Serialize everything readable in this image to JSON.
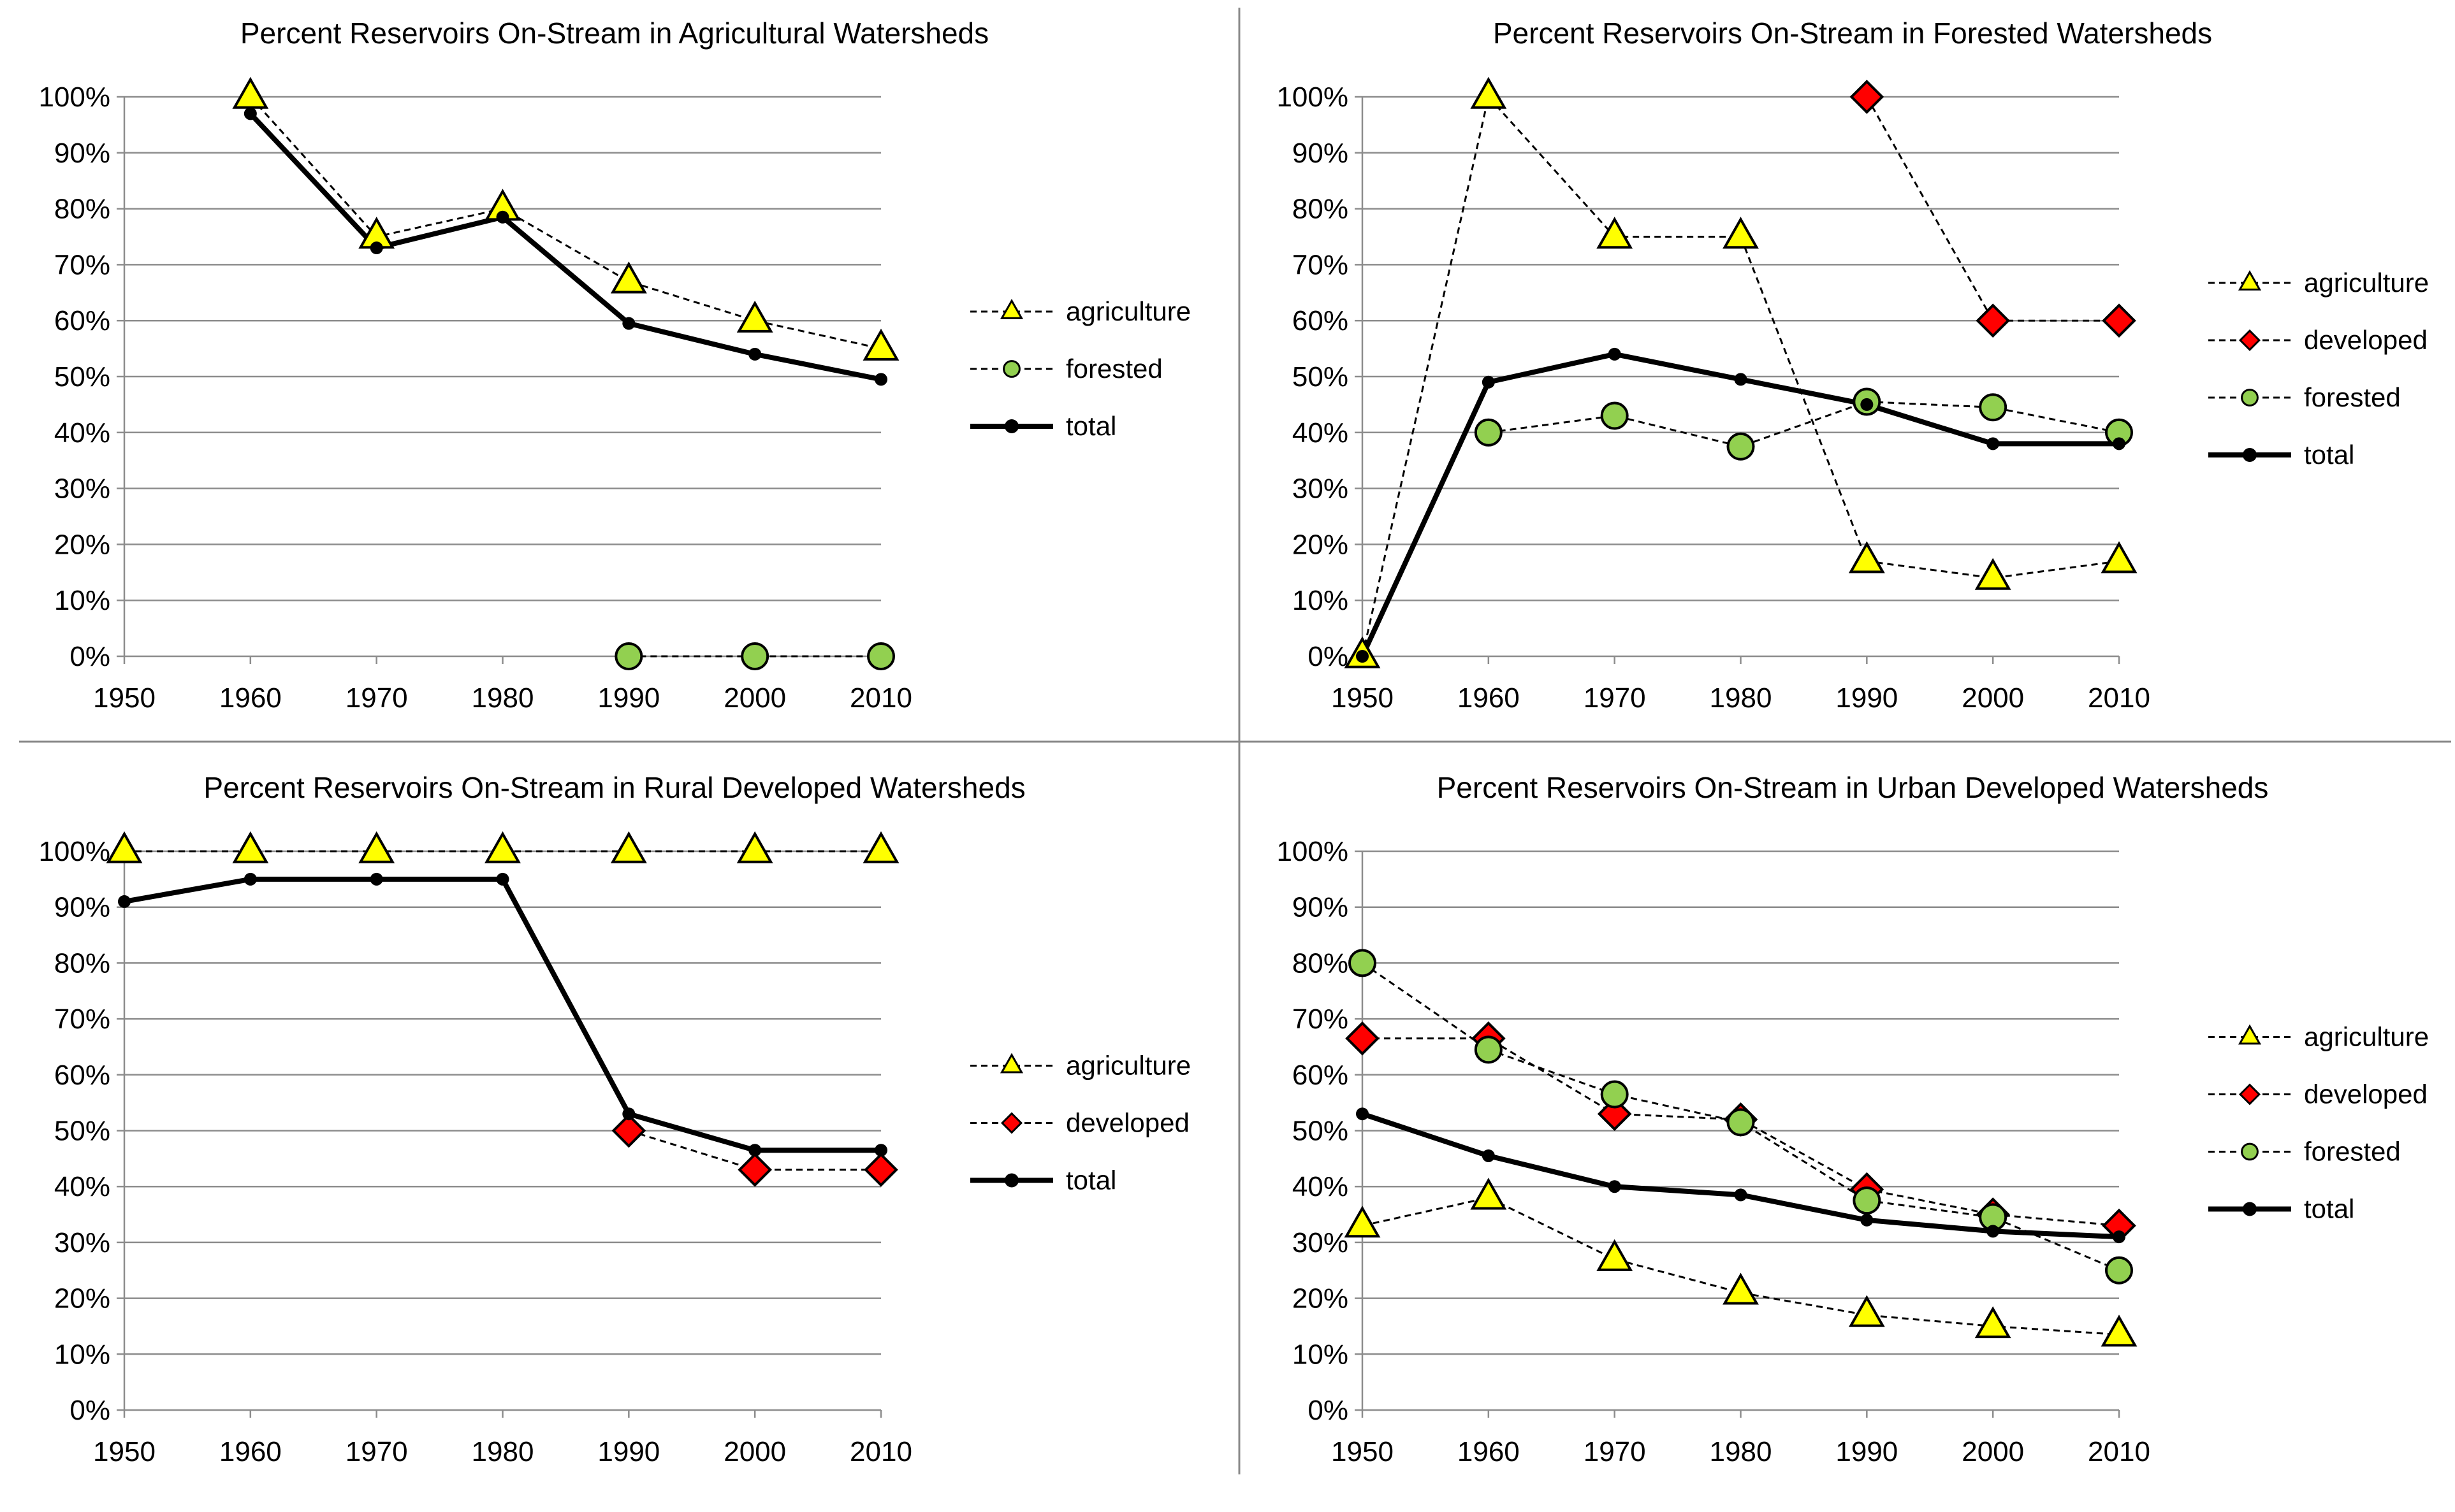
{
  "chart_data": [
    {
      "type": "line",
      "title": "Percent Reservoirs On-Stream in Agricultural Watersheds",
      "x": [
        1950,
        1960,
        1970,
        1980,
        1990,
        2000,
        2010
      ],
      "ylim": [
        0,
        100
      ],
      "y_ticks": [
        "0%",
        "10%",
        "20%",
        "30%",
        "40%",
        "50%",
        "60%",
        "70%",
        "80%",
        "90%",
        "100%"
      ],
      "grid": true,
      "legend": "right",
      "series": [
        {
          "name": "agriculture",
          "marker": "triangle",
          "color": "#ffff00",
          "dash": true,
          "values": [
            null,
            100,
            75,
            80,
            67,
            60,
            55
          ]
        },
        {
          "name": "forested",
          "marker": "circle",
          "color": "#92d050",
          "dash": true,
          "values": [
            null,
            null,
            null,
            null,
            0,
            0,
            0
          ]
        },
        {
          "name": "total",
          "marker": "dot",
          "color": "#000000",
          "dash": false,
          "values": [
            null,
            97,
            73,
            78.5,
            59.5,
            54,
            49.5
          ]
        }
      ]
    },
    {
      "type": "line",
      "title": "Percent Reservoirs On-Stream in Forested Watersheds",
      "x": [
        1950,
        1960,
        1970,
        1980,
        1990,
        2000,
        2010
      ],
      "ylim": [
        0,
        100
      ],
      "y_ticks": [
        "0%",
        "10%",
        "20%",
        "30%",
        "40%",
        "50%",
        "60%",
        "70%",
        "80%",
        "90%",
        "100%"
      ],
      "grid": true,
      "legend": "right",
      "series": [
        {
          "name": "agriculture",
          "marker": "triangle",
          "color": "#ffff00",
          "dash": true,
          "values": [
            0,
            100,
            75,
            75,
            17,
            14,
            17
          ]
        },
        {
          "name": "developed",
          "marker": "diamond",
          "color": "#ff0000",
          "dash": true,
          "values": [
            null,
            null,
            null,
            null,
            100,
            60,
            60
          ]
        },
        {
          "name": "forested",
          "marker": "circle",
          "color": "#92d050",
          "dash": true,
          "values": [
            null,
            40,
            43,
            37.5,
            45.5,
            44.5,
            40
          ]
        },
        {
          "name": "total",
          "marker": "dot",
          "color": "#000000",
          "dash": false,
          "values": [
            0,
            49,
            54,
            49.5,
            45,
            38,
            38
          ]
        }
      ]
    },
    {
      "type": "line",
      "title": "Percent Reservoirs On-Stream in Rural Developed Watersheds",
      "x": [
        1950,
        1960,
        1970,
        1980,
        1990,
        2000,
        2010
      ],
      "ylim": [
        0,
        100
      ],
      "y_ticks": [
        "0%",
        "10%",
        "20%",
        "30%",
        "40%",
        "50%",
        "60%",
        "70%",
        "80%",
        "90%",
        "100%"
      ],
      "grid": true,
      "legend": "right",
      "series": [
        {
          "name": "agriculture",
          "marker": "triangle",
          "color": "#ffff00",
          "dash": true,
          "values": [
            100,
            100,
            100,
            100,
            100,
            100,
            100
          ]
        },
        {
          "name": "developed",
          "marker": "diamond",
          "color": "#ff0000",
          "dash": true,
          "values": [
            null,
            null,
            null,
            null,
            50,
            43,
            43
          ]
        },
        {
          "name": "total",
          "marker": "dot",
          "color": "#000000",
          "dash": false,
          "values": [
            91,
            95,
            95,
            95,
            53,
            46.5,
            46.5
          ]
        }
      ]
    },
    {
      "type": "line",
      "title": "Percent Reservoirs On-Stream in Urban Developed Watersheds",
      "x": [
        1950,
        1960,
        1970,
        1980,
        1990,
        2000,
        2010
      ],
      "ylim": [
        0,
        100
      ],
      "y_ticks": [
        "0%",
        "10%",
        "20%",
        "30%",
        "40%",
        "50%",
        "60%",
        "70%",
        "80%",
        "90%",
        "100%"
      ],
      "grid": true,
      "legend": "right",
      "series": [
        {
          "name": "agriculture",
          "marker": "triangle",
          "color": "#ffff00",
          "dash": true,
          "values": [
            33,
            38,
            27,
            21,
            17,
            15,
            13.5
          ]
        },
        {
          "name": "developed",
          "marker": "diamond",
          "color": "#ff0000",
          "dash": true,
          "values": [
            66.5,
            66.5,
            53,
            52,
            39.5,
            35,
            33
          ]
        },
        {
          "name": "forested",
          "marker": "circle",
          "color": "#92d050",
          "dash": true,
          "values": [
            80,
            64.5,
            56.5,
            51.5,
            37.5,
            34.5,
            25
          ]
        },
        {
          "name": "total",
          "marker": "dot",
          "color": "#000000",
          "dash": false,
          "values": [
            53,
            45.5,
            40,
            38.5,
            34,
            32,
            31
          ]
        }
      ]
    }
  ]
}
